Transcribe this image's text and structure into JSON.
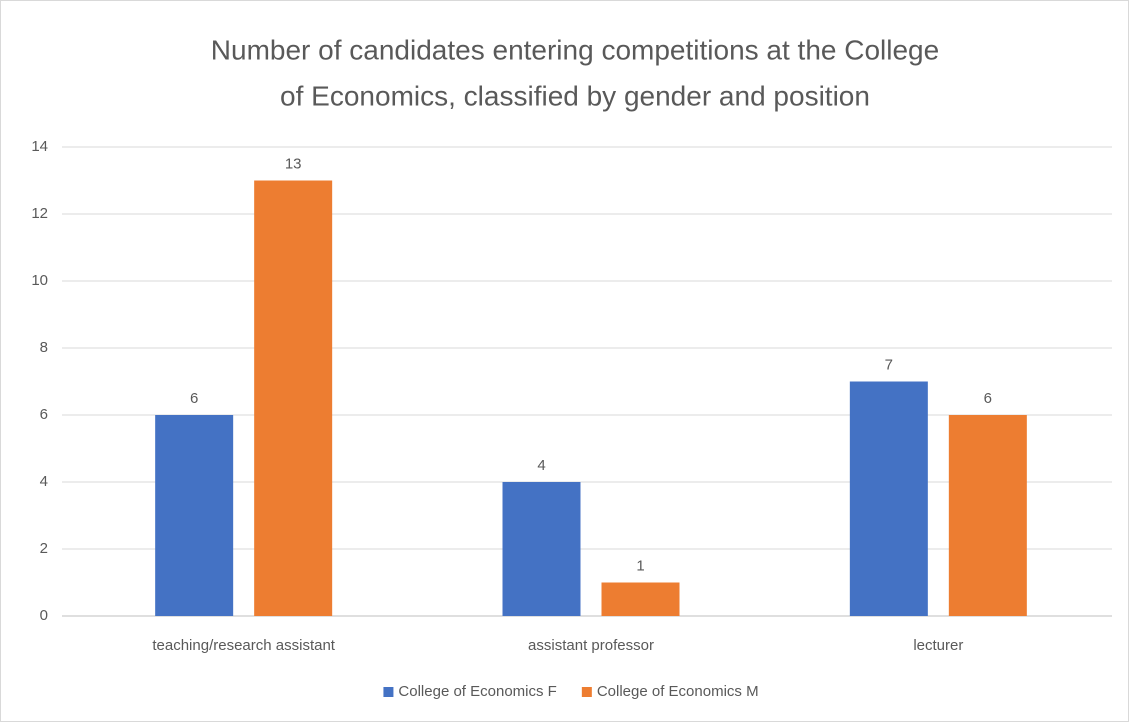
{
  "chart_data": {
    "type": "bar",
    "title": [
      "Number of candidates entering competitions at the College",
      "of Economics, classified by gender and position"
    ],
    "categories": [
      "teaching/research assistant",
      "assistant professor",
      "lecturer"
    ],
    "series": [
      {
        "name": "College of Economics F",
        "color": "#4472c4",
        "values": [
          6,
          4,
          7
        ]
      },
      {
        "name": "College of Economics M",
        "color": "#ed7d31",
        "values": [
          13,
          1,
          6
        ]
      }
    ],
    "ylim": [
      0,
      14
    ],
    "yticks": [
      0,
      2,
      4,
      6,
      8,
      10,
      12,
      14
    ],
    "grid": true,
    "legend": "bottom"
  }
}
